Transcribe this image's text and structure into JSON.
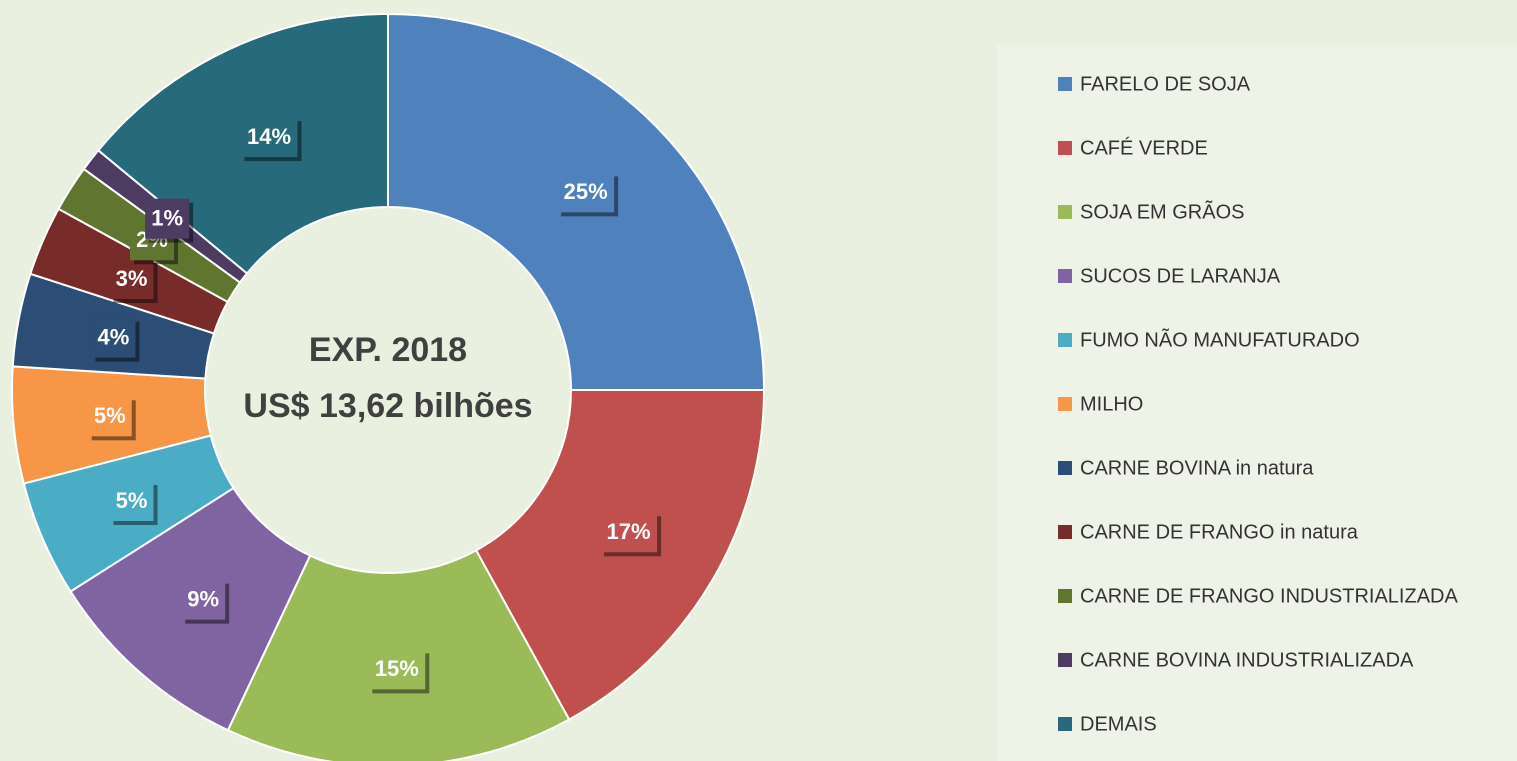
{
  "chart_data": {
    "type": "pie",
    "center_text": [
      "EXP. 2018",
      "US$ 13,62 bilhões"
    ],
    "categories": [
      "FARELO DE SOJA",
      "CAFÉ VERDE",
      "SOJA EM GRÃOS",
      "SUCOS DE LARANJA",
      "FUMO NÃO MANUFATURADO",
      "MILHO",
      "CARNE BOVINA in natura",
      "CARNE DE FRANGO in natura",
      "CARNE DE FRANGO INDUSTRIALIZADA",
      "CARNE BOVINA INDUSTRIALIZADA",
      "DEMAIS"
    ],
    "values": [
      25,
      17,
      15,
      9,
      5,
      5,
      4,
      3,
      2,
      1,
      14
    ],
    "value_labels": [
      "25%",
      "17%",
      "15%",
      "9%",
      "5%",
      "5%",
      "4%",
      "3%",
      "2%",
      "1%",
      "14%"
    ],
    "colors": [
      "#4f81bd",
      "#c0504d",
      "#9bbb59",
      "#8064a2",
      "#4bacc6",
      "#f79646",
      "#2c4d75",
      "#772c2a",
      "#5f7530",
      "#4d3b62",
      "#276a7c"
    ],
    "legend": "right"
  }
}
